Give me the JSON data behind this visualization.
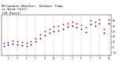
{
  "title": "Milwaukee Weather: Outdoor Temp.",
  "title2": "vs Wind Chill",
  "title3": "(24 Hours)",
  "title_fontsize": 3.0,
  "temp_color": "#dd0000",
  "wind_chill_color": "#0000cc",
  "background_color": "#ffffff",
  "xlim": [
    -0.5,
    23.5
  ],
  "ylim": [
    -15,
    60
  ],
  "hours": [
    0,
    1,
    2,
    3,
    4,
    5,
    6,
    7,
    8,
    9,
    10,
    11,
    12,
    13,
    14,
    15,
    16,
    17,
    18,
    19,
    20,
    21,
    22,
    23
  ],
  "temp": [
    8,
    10,
    13,
    11,
    10,
    9,
    11,
    17,
    24,
    30,
    35,
    38,
    40,
    43,
    45,
    47,
    44,
    41,
    37,
    50,
    47,
    51,
    34,
    51
  ],
  "wind_chill": [
    3,
    5,
    7,
    5,
    4,
    3,
    6,
    12,
    17,
    23,
    27,
    30,
    32,
    35,
    38,
    40,
    37,
    34,
    29,
    43,
    40,
    44,
    27,
    44
  ],
  "vgrid_positions": [
    1,
    3,
    5,
    7,
    9,
    11,
    13,
    15,
    17,
    19,
    21,
    23
  ],
  "y_ticks": [
    -10,
    0,
    10,
    20,
    30,
    40,
    50
  ],
  "x_ticks": [
    1,
    3,
    5,
    7,
    9,
    11,
    13,
    15,
    17,
    19,
    21,
    23
  ],
  "marker_size": 1.8
}
